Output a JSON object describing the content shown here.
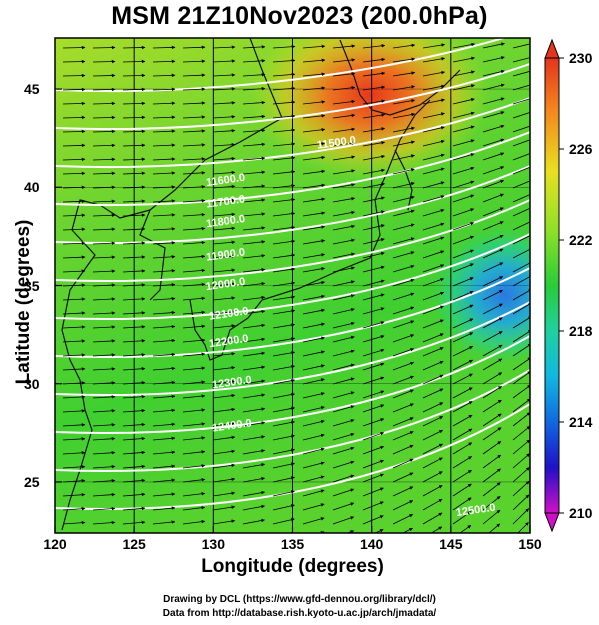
{
  "title": "MSM 21Z10Nov2023 (200.0hPa)",
  "x_axis": {
    "label": "Longitude (degrees)",
    "ticks": [
      "120",
      "125",
      "130",
      "135",
      "140",
      "145",
      "150"
    ],
    "range": [
      120,
      150
    ]
  },
  "y_axis": {
    "label": "Latitude  (degrees)",
    "ticks": [
      "25",
      "30",
      "35",
      "40",
      "45"
    ],
    "range": [
      22.4,
      47.6
    ]
  },
  "colorbar": {
    "ticks": [
      "230",
      "226",
      "222",
      "218",
      "214",
      "210"
    ],
    "range": [
      210,
      230
    ]
  },
  "contour_labels": [
    {
      "text": "11500.0",
      "lon": 137.8,
      "lat": 42.1
    },
    {
      "text": "11600.0",
      "lon": 130.8,
      "lat": 40.2
    },
    {
      "text": "11700.0",
      "lon": 130.8,
      "lat": 39.1
    },
    {
      "text": "11800.0",
      "lon": 130.8,
      "lat": 38.1
    },
    {
      "text": "11900.0",
      "lon": 130.8,
      "lat": 36.4
    },
    {
      "text": "12000.0",
      "lon": 130.8,
      "lat": 34.9
    },
    {
      "text": "12100.0",
      "lon": 131.0,
      "lat": 33.4
    },
    {
      "text": "12200.0",
      "lon": 131.0,
      "lat": 32.0
    },
    {
      "text": "12300.0",
      "lon": 131.2,
      "lat": 29.9
    },
    {
      "text": "12400.0",
      "lon": 131.2,
      "lat": 27.7
    },
    {
      "text": "12500.0",
      "lon": 146.6,
      "lat": 23.4
    }
  ],
  "colors": {
    "warm": "#e8361a",
    "cool": "#2aa0e0",
    "mid": "#3ed23a",
    "contour": "#ffffff",
    "coast": "#111111"
  },
  "credits": [
    "Drawing by DCL (https://www.gfd-dennou.org/library/dcl/)",
    "Data from http://database.rish.kyoto-u.ac.jp/arch/jmadata/"
  ]
}
